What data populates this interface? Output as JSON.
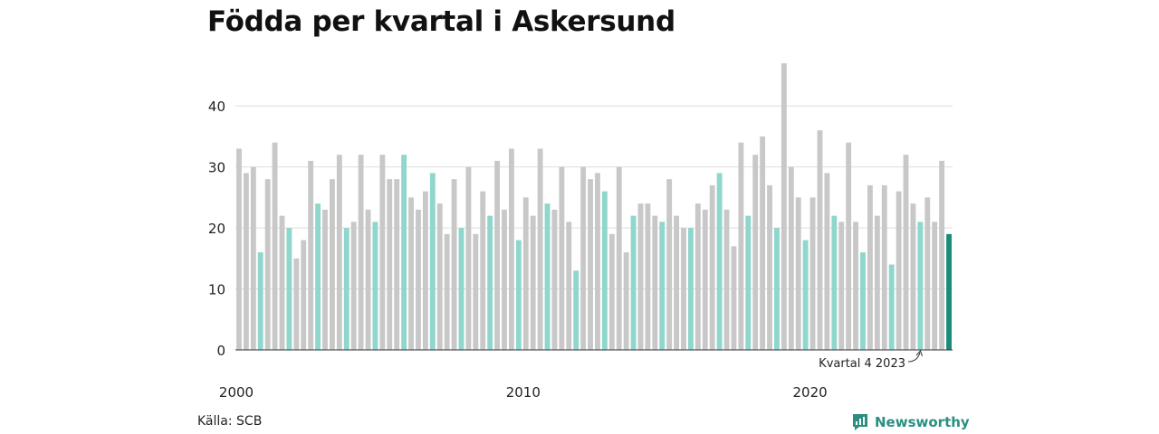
{
  "title": "Födda per kvartal i Askersund",
  "source": "Källa: SCB",
  "brand": "Newsworthy",
  "colors": {
    "bar": "#c8c8c8",
    "q1_bar": "#8fd6cc",
    "highlight_bar": "#1a8a7a",
    "grid": "#dddddd",
    "brand": "#2a8f80"
  },
  "chart_data": {
    "type": "bar",
    "title": "Födda per kvartal i Askersund",
    "xlabel": "",
    "ylabel": "",
    "ylim": [
      0,
      47
    ],
    "yticks": [
      0,
      10,
      20,
      30,
      40
    ],
    "x_tick_labels": [
      {
        "label": "2000",
        "index": 0
      },
      {
        "label": "2010",
        "index": 40
      },
      {
        "label": "2020",
        "index": 80
      }
    ],
    "annotation": {
      "text": "Kvartal 4 2023",
      "index": 95
    },
    "series": [
      {
        "values": [
          33,
          29,
          30,
          16,
          28,
          34,
          22,
          20,
          15,
          18,
          31,
          24,
          23,
          28,
          32,
          20,
          21,
          32,
          23,
          21,
          32,
          28,
          28,
          32,
          25,
          23,
          26,
          29,
          24,
          19,
          28,
          20,
          30,
          19,
          26,
          22,
          31,
          23,
          33,
          18,
          25,
          22,
          33,
          24,
          23,
          30,
          21,
          13,
          30,
          28,
          29,
          26,
          19,
          30,
          16,
          22,
          24,
          24,
          22,
          21,
          28,
          22,
          20,
          20,
          24,
          23,
          27,
          29,
          23,
          17,
          34,
          22,
          32,
          35,
          27,
          20,
          47,
          30,
          25,
          18,
          25,
          36,
          29,
          22,
          21,
          34,
          21,
          16,
          27,
          22,
          27,
          14,
          26,
          32,
          24,
          21,
          25,
          21,
          31,
          19
        ]
      }
    ]
  }
}
